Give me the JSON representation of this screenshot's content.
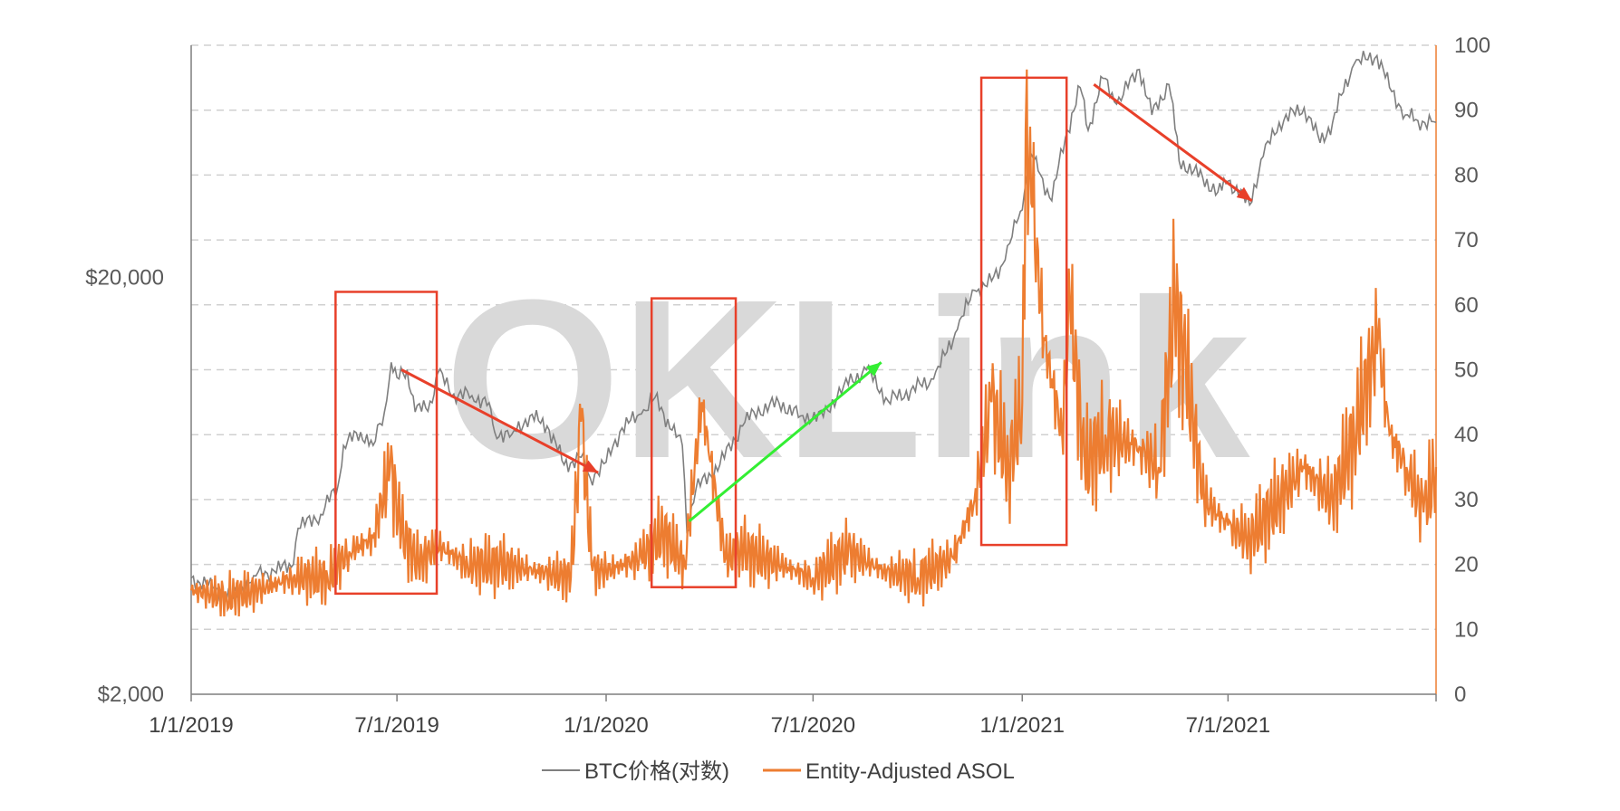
{
  "chart_data": {
    "type": "line",
    "watermark": "OKLink",
    "x_range": [
      "2019-01-01",
      "2021-12-31"
    ],
    "x_ticks": [
      "1/1/2019",
      "7/1/2019",
      "1/1/2020",
      "7/1/2020",
      "1/1/2021",
      "7/1/2021"
    ],
    "x_tick_dates": [
      "2019-01-01",
      "2019-07-01",
      "2020-01-01",
      "2020-07-01",
      "2021-01-01",
      "2021-07-01"
    ],
    "left_axis": {
      "scale": "log",
      "range": [
        2000,
        72000
      ],
      "ticks": [
        "$2,000",
        "$20,000"
      ],
      "tick_values": [
        2000,
        20000
      ],
      "color": "#7f7f7f"
    },
    "right_axis": {
      "scale": "linear",
      "range": [
        0,
        100
      ],
      "ticks": [
        "0",
        "10",
        "20",
        "30",
        "40",
        "50",
        "60",
        "70",
        "80",
        "90",
        "100"
      ],
      "color": "#ed7d31"
    },
    "grid": true,
    "legend_position": "bottom",
    "series": [
      {
        "name": "BTC价格(对数)",
        "axis": "left",
        "color": "#7f7f7f",
        "points": [
          [
            "2019-01-01",
            3800
          ],
          [
            "2019-01-20",
            3600
          ],
          [
            "2019-02-07",
            3400
          ],
          [
            "2019-02-25",
            3850
          ],
          [
            "2019-03-15",
            3950
          ],
          [
            "2019-04-01",
            4100
          ],
          [
            "2019-04-05",
            5000
          ],
          [
            "2019-04-25",
            5400
          ],
          [
            "2019-05-10",
            6300
          ],
          [
            "2019-05-15",
            7900
          ],
          [
            "2019-05-30",
            8500
          ],
          [
            "2019-06-10",
            7900
          ],
          [
            "2019-06-20",
            9500
          ],
          [
            "2019-06-26",
            12500
          ],
          [
            "2019-07-01",
            11500
          ],
          [
            "2019-07-10",
            12000
          ],
          [
            "2019-07-17",
            9500
          ],
          [
            "2019-08-01",
            10000
          ],
          [
            "2019-08-06",
            11800
          ],
          [
            "2019-08-20",
            10500
          ],
          [
            "2019-09-05",
            10400
          ],
          [
            "2019-09-20",
            10000
          ],
          [
            "2019-09-25",
            8500
          ],
          [
            "2019-10-10",
            8400
          ],
          [
            "2019-10-26",
            9300
          ],
          [
            "2019-11-10",
            8800
          ],
          [
            "2019-11-25",
            7100
          ],
          [
            "2019-12-10",
            7400
          ],
          [
            "2019-12-18",
            6600
          ],
          [
            "2020-01-01",
            7200
          ],
          [
            "2020-01-15",
            8700
          ],
          [
            "2020-02-01",
            9400
          ],
          [
            "2020-02-13",
            10300
          ],
          [
            "2020-02-28",
            8600
          ],
          [
            "2020-03-08",
            7900
          ],
          [
            "2020-03-12",
            4900
          ],
          [
            "2020-03-20",
            6200
          ],
          [
            "2020-04-10",
            7100
          ],
          [
            "2020-04-30",
            8800
          ],
          [
            "2020-05-10",
            9500
          ],
          [
            "2020-06-01",
            10000
          ],
          [
            "2020-06-20",
            9300
          ],
          [
            "2020-07-10",
            9250
          ],
          [
            "2020-07-28",
            11000
          ],
          [
            "2020-08-17",
            12000
          ],
          [
            "2020-09-05",
            10100
          ],
          [
            "2020-09-25",
            10700
          ],
          [
            "2020-10-15",
            11400
          ],
          [
            "2020-10-25",
            13000
          ],
          [
            "2020-11-05",
            15000
          ],
          [
            "2020-11-20",
            18600
          ],
          [
            "2020-12-01",
            19000
          ],
          [
            "2020-12-17",
            22000
          ],
          [
            "2020-12-27",
            27000
          ],
          [
            "2021-01-01",
            29000
          ],
          [
            "2021-01-08",
            40000
          ],
          [
            "2021-01-15",
            36000
          ],
          [
            "2021-01-27",
            30500
          ],
          [
            "2021-02-10",
            45000
          ],
          [
            "2021-02-21",
            57000
          ],
          [
            "2021-02-28",
            45000
          ],
          [
            "2021-03-13",
            60000
          ],
          [
            "2021-03-25",
            52000
          ],
          [
            "2021-04-14",
            63000
          ],
          [
            "2021-04-25",
            49000
          ],
          [
            "2021-05-10",
            58000
          ],
          [
            "2021-05-19",
            38000
          ],
          [
            "2021-06-01",
            36000
          ],
          [
            "2021-06-22",
            32000
          ],
          [
            "2021-07-01",
            34000
          ],
          [
            "2021-07-20",
            29800
          ],
          [
            "2021-08-01",
            39000
          ],
          [
            "2021-08-15",
            47000
          ],
          [
            "2021-09-06",
            51000
          ],
          [
            "2021-09-20",
            42000
          ],
          [
            "2021-10-01",
            47000
          ],
          [
            "2021-10-20",
            65000
          ],
          [
            "2021-11-09",
            68000
          ],
          [
            "2021-11-20",
            57000
          ],
          [
            "2021-12-04",
            49000
          ],
          [
            "2021-12-15",
            47500
          ],
          [
            "2021-12-31",
            47000
          ]
        ]
      },
      {
        "name": "Entity-Adjusted ASOL",
        "axis": "right",
        "color": "#ed7d31",
        "points": [
          [
            "2019-01-01",
            16
          ],
          [
            "2019-02-01",
            15
          ],
          [
            "2019-03-01",
            16
          ],
          [
            "2019-04-01",
            18
          ],
          [
            "2019-05-01",
            18
          ],
          [
            "2019-05-20",
            22
          ],
          [
            "2019-06-10",
            24
          ],
          [
            "2019-06-25",
            35
          ],
          [
            "2019-07-05",
            25
          ],
          [
            "2019-07-20",
            20
          ],
          [
            "2019-08-05",
            23
          ],
          [
            "2019-09-01",
            20
          ],
          [
            "2019-10-01",
            20
          ],
          [
            "2019-11-01",
            19
          ],
          [
            "2019-12-01",
            18
          ],
          [
            "2019-12-10",
            42
          ],
          [
            "2019-12-20",
            19
          ],
          [
            "2020-01-01",
            19
          ],
          [
            "2020-02-01",
            21
          ],
          [
            "2020-02-20",
            25
          ],
          [
            "2020-03-10",
            20
          ],
          [
            "2020-03-25",
            45
          ],
          [
            "2020-04-15",
            21
          ],
          [
            "2020-05-01",
            22
          ],
          [
            "2020-06-01",
            20
          ],
          [
            "2020-07-01",
            18
          ],
          [
            "2020-08-01",
            22
          ],
          [
            "2020-09-01",
            19
          ],
          [
            "2020-10-01",
            18
          ],
          [
            "2020-11-01",
            21
          ],
          [
            "2020-11-20",
            30
          ],
          [
            "2020-12-05",
            45
          ],
          [
            "2020-12-20",
            35
          ],
          [
            "2021-01-01",
            45
          ],
          [
            "2021-01-04",
            87
          ],
          [
            "2021-01-10",
            75
          ],
          [
            "2021-01-20",
            55
          ],
          [
            "2021-02-05",
            40
          ],
          [
            "2021-02-12",
            60
          ],
          [
            "2021-02-25",
            35
          ],
          [
            "2021-03-15",
            40
          ],
          [
            "2021-04-15",
            38
          ],
          [
            "2021-05-01",
            35
          ],
          [
            "2021-05-15",
            60
          ],
          [
            "2021-05-25",
            50
          ],
          [
            "2021-06-10",
            30
          ],
          [
            "2021-07-01",
            26
          ],
          [
            "2021-07-20",
            24
          ],
          [
            "2021-08-15",
            30
          ],
          [
            "2021-09-05",
            35
          ],
          [
            "2021-10-01",
            30
          ],
          [
            "2021-10-20",
            40
          ],
          [
            "2021-11-10",
            55
          ],
          [
            "2021-11-20",
            40
          ],
          [
            "2021-12-05",
            35
          ],
          [
            "2021-12-20",
            28
          ],
          [
            "2021-12-31",
            35
          ]
        ]
      }
    ],
    "annotations": {
      "boxes": [
        {
          "from": "2019-05-08",
          "to": "2019-08-05",
          "top": 62,
          "bottom": 15.5,
          "color": "#e8402a"
        },
        {
          "from": "2020-02-10",
          "to": "2020-04-24",
          "top": 61,
          "bottom": 16.5,
          "color": "#e8402a"
        },
        {
          "from": "2020-11-26",
          "to": "2021-02-09",
          "top": 95,
          "bottom": 23,
          "color": "#e8402a"
        }
      ],
      "arrows": [
        {
          "from": [
            "2019-07-05",
            12000
          ],
          "to": [
            "2019-12-25",
            6800
          ],
          "color": "#e8402a"
        },
        {
          "from": [
            "2020-03-14",
            5200
          ],
          "to": [
            "2020-08-30",
            12500
          ],
          "color": "#33ee33"
        },
        {
          "from": [
            "2021-03-05",
            58000
          ],
          "to": [
            "2021-07-22",
            30500
          ],
          "color": "#e8402a"
        }
      ]
    }
  }
}
